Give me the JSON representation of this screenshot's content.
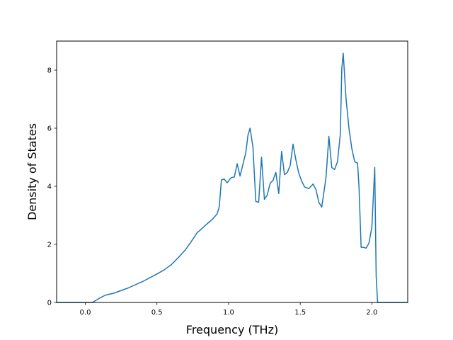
{
  "chart_data": {
    "type": "line",
    "title": "",
    "xlabel": "Frequency (THz)",
    "ylabel": "Density of States",
    "xlim": [
      -0.2,
      2.25
    ],
    "ylim": [
      0,
      9
    ],
    "xticks": [
      0.0,
      0.5,
      1.0,
      1.5,
      2.0
    ],
    "xtick_labels": [
      "0.0",
      "0.5",
      "1.0",
      "1.5",
      "2.0"
    ],
    "yticks": [
      0,
      2,
      4,
      6,
      8
    ],
    "ytick_labels": [
      "0",
      "2",
      "4",
      "6",
      "8"
    ],
    "grid": false,
    "line_color": "#1f77b4",
    "series": [
      {
        "x": [
          -0.2,
          -0.1,
          0.0,
          0.05,
          0.1,
          0.14,
          0.2,
          0.3,
          0.4,
          0.5,
          0.55,
          0.6,
          0.65,
          0.7,
          0.74,
          0.78,
          0.8,
          0.83,
          0.86,
          0.89,
          0.92,
          0.935,
          0.95,
          0.97,
          0.99,
          1.01,
          1.02,
          1.04,
          1.06,
          1.08,
          1.1,
          1.12,
          1.135,
          1.15,
          1.17,
          1.19,
          1.21,
          1.23,
          1.25,
          1.27,
          1.29,
          1.31,
          1.33,
          1.35,
          1.37,
          1.39,
          1.41,
          1.43,
          1.45,
          1.47,
          1.49,
          1.51,
          1.53,
          1.56,
          1.59,
          1.61,
          1.63,
          1.65,
          1.68,
          1.7,
          1.72,
          1.74,
          1.76,
          1.78,
          1.79,
          1.8,
          1.82,
          1.84,
          1.86,
          1.88,
          1.9,
          1.91,
          1.925,
          1.94,
          1.96,
          1.98,
          2.0,
          2.02,
          2.03,
          2.04,
          2.05,
          2.1,
          2.15,
          2.2,
          2.25
        ],
        "y": [
          0.0,
          0.0,
          0.0,
          0.0,
          0.15,
          0.25,
          0.32,
          0.5,
          0.72,
          0.98,
          1.12,
          1.3,
          1.55,
          1.82,
          2.1,
          2.4,
          2.48,
          2.62,
          2.75,
          2.88,
          3.05,
          3.3,
          4.22,
          4.25,
          4.12,
          4.25,
          4.3,
          4.32,
          4.78,
          4.35,
          4.75,
          5.15,
          5.75,
          6.0,
          5.35,
          3.48,
          3.45,
          5.0,
          3.55,
          3.7,
          4.1,
          4.2,
          4.48,
          3.75,
          5.2,
          4.4,
          4.48,
          4.72,
          5.45,
          4.9,
          4.45,
          4.18,
          3.98,
          3.92,
          4.08,
          3.88,
          3.45,
          3.28,
          4.3,
          5.72,
          4.65,
          4.58,
          4.85,
          5.8,
          8.05,
          8.58,
          7.0,
          6.0,
          5.3,
          4.85,
          4.8,
          4.0,
          1.9,
          1.9,
          1.87,
          2.05,
          2.6,
          4.65,
          0.9,
          0.0,
          0.0,
          0.0,
          0.0,
          0.0,
          0.0
        ]
      }
    ]
  }
}
